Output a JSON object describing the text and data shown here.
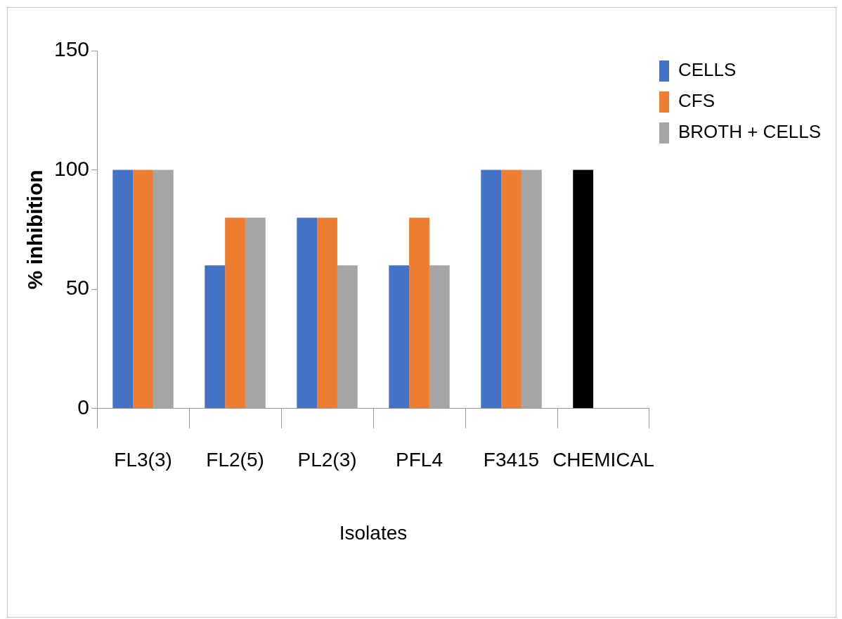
{
  "chart_data": {
    "type": "bar",
    "xlabel": "Isolates",
    "ylabel": "% inhibition",
    "categories": [
      "FL3(3)",
      "FL2(5)",
      "PL2(3)",
      "PFL4",
      "F3415",
      "CHEMICAL"
    ],
    "series": [
      {
        "name": "CELLS",
        "color": "#4472c4",
        "colors": [
          "#4472c4",
          "#4472c4",
          "#4472c4",
          "#4472c4",
          "#4472c4",
          "#000000"
        ],
        "values": [
          100,
          60,
          80,
          60,
          100,
          100
        ]
      },
      {
        "name": "CFS",
        "color": "#ed7d31",
        "values": [
          100,
          80,
          80,
          80,
          100,
          null
        ]
      },
      {
        "name": "BROTH + CELLS",
        "color": "#a5a5a5",
        "values": [
          100,
          80,
          60,
          60,
          100,
          null
        ]
      }
    ],
    "ylim": [
      0,
      150
    ],
    "yticks": [
      0,
      50,
      100,
      150
    ],
    "grid": false,
    "legend": "top right"
  }
}
